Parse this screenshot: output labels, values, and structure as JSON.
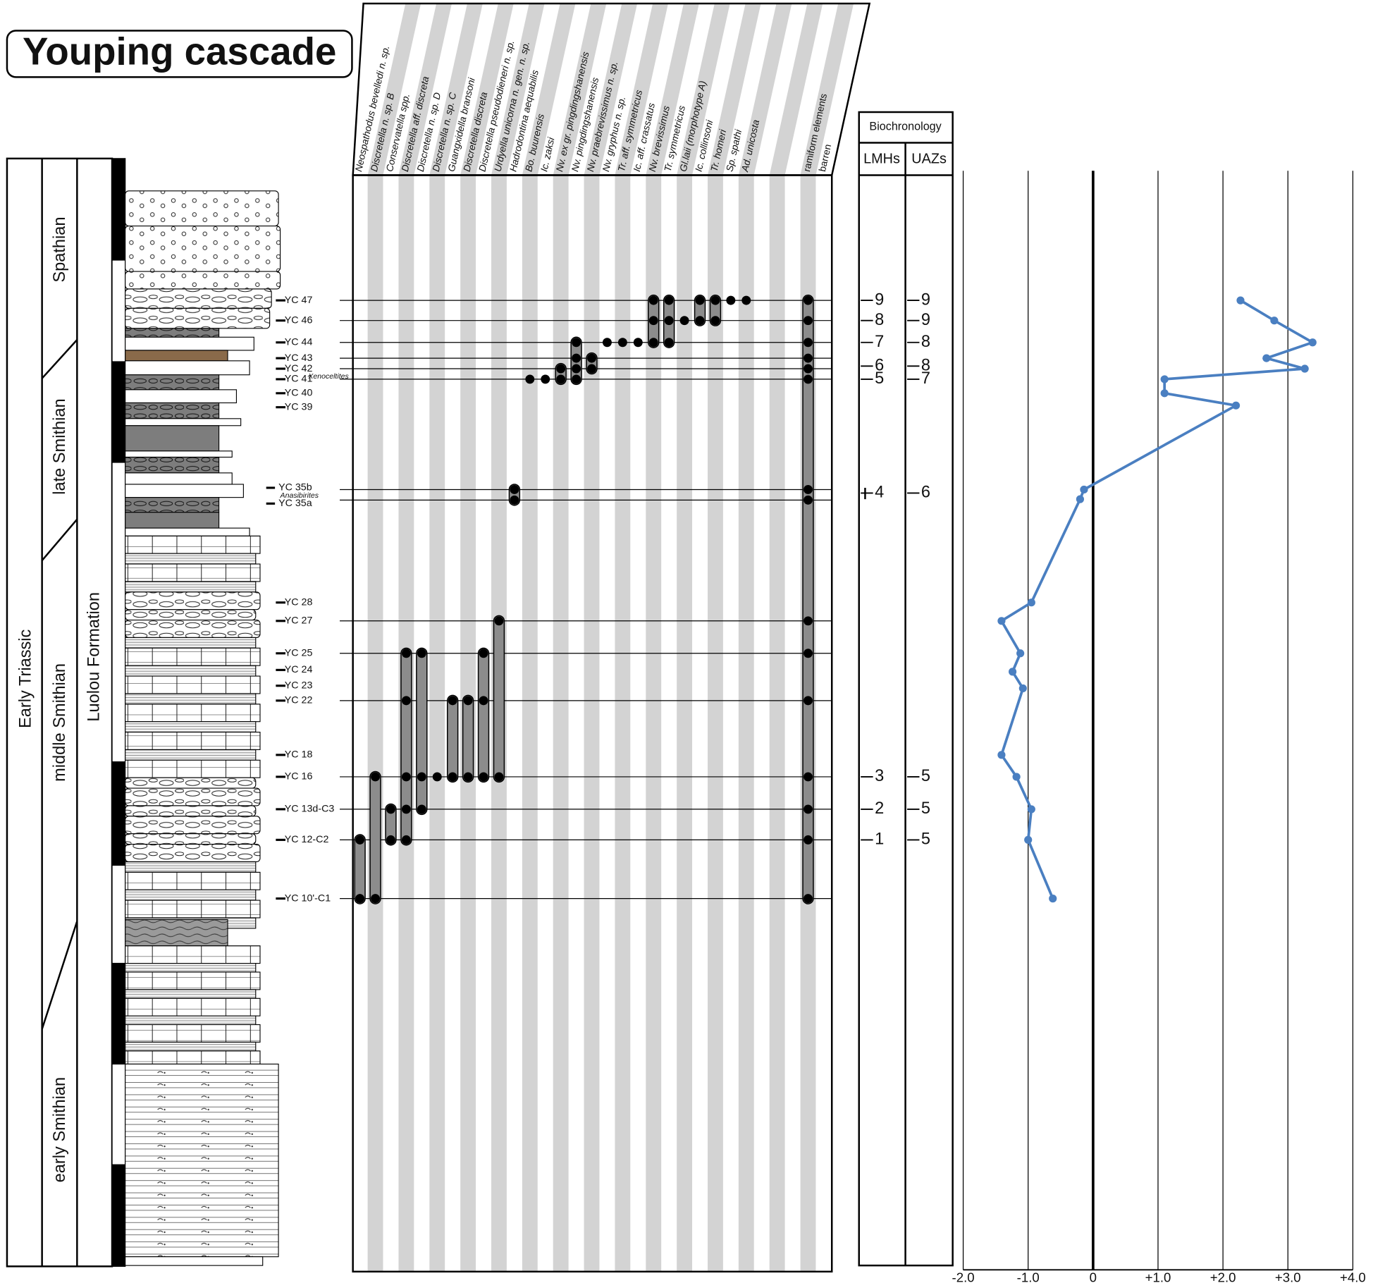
{
  "title": "Youping cascade",
  "column": {
    "system": "Early Triassic",
    "formation": "Luolou Formation",
    "stages": [
      "Spathian",
      "late Smithian",
      "middle Smithian",
      "early Smithian"
    ]
  },
  "samples": [
    "YC 47",
    "YC 46",
    "YC 44",
    "YC 43",
    "YC 42",
    "YC 41",
    "YC 40",
    "YC 39",
    "YC 35b",
    "YC 35a",
    "YC 28",
    "YC 27",
    "YC 25",
    "YC 24",
    "YC 23",
    "YC 22",
    "YC 18",
    "YC 16",
    "YC 13d-C3",
    "YC 12-C2",
    "YC 10'-C1"
  ],
  "ammonoids": [
    "Xenoceltites",
    "Anasibirites"
  ],
  "taxa": [
    "Neospathodus bevelledi n. sp.",
    "Discretella n. sp. B",
    "Conservatella spp.",
    "Discretella aff. discreta",
    "Discretella n. sp. D",
    "Discretella n. sp. C",
    "Guangxidella bransoni",
    "Discretella discreta",
    "Discretella pseudodieneri n. sp.",
    "Urdyella unicorna n. gen. n. sp.",
    "Hadrodontina aequabilis",
    "Bo. buurensis",
    "Ic. zaksi",
    "Nv. ex gr. pingdingshanensis",
    "Nv. pingdingshanensis",
    "Nv. praebrevissimus n. sp.",
    "Nv. gryphus n. sp.",
    "Tr. aff. symmetricus",
    "Ic. aff. crassatus",
    "Nv. brevissimus",
    "Tr. symmetricus",
    "Gl.laii (morphotype A)",
    "Ic. collinsoni",
    "Tr. homeri",
    "Sp. spathi",
    "Ad. unicosta",
    "ramiform elements",
    "barren"
  ],
  "occurrences": [
    [
      0,
      0,
      0,
      0,
      0,
      0,
      0,
      0,
      0,
      0,
      0,
      0,
      0,
      0,
      0,
      0,
      0,
      0,
      0,
      1,
      1,
      0,
      1,
      1,
      1,
      1,
      1,
      0
    ],
    [
      0,
      0,
      0,
      0,
      0,
      0,
      0,
      0,
      0,
      0,
      0,
      0,
      0,
      0,
      0,
      0,
      0,
      0,
      0,
      1,
      1,
      1,
      1,
      1,
      0,
      0,
      1,
      0
    ],
    [
      0,
      0,
      0,
      0,
      0,
      0,
      0,
      0,
      0,
      0,
      0,
      0,
      0,
      0,
      1,
      0,
      1,
      1,
      1,
      1,
      1,
      0,
      0,
      0,
      0,
      0,
      1,
      0
    ],
    [
      0,
      0,
      0,
      0,
      0,
      0,
      0,
      0,
      0,
      0,
      0,
      0,
      0,
      0,
      1,
      1,
      0,
      0,
      0,
      0,
      0,
      0,
      0,
      0,
      0,
      0,
      1,
      0
    ],
    [
      0,
      0,
      0,
      0,
      0,
      0,
      0,
      0,
      0,
      0,
      0,
      0,
      0,
      1,
      1,
      1,
      0,
      0,
      0,
      0,
      0,
      0,
      0,
      0,
      0,
      0,
      1,
      0
    ],
    [
      0,
      0,
      0,
      0,
      0,
      0,
      0,
      0,
      0,
      0,
      0,
      1,
      1,
      1,
      1,
      0,
      0,
      0,
      0,
      0,
      0,
      0,
      0,
      0,
      0,
      0,
      1,
      0
    ],
    [
      0,
      0,
      0,
      0,
      0,
      0,
      0,
      0,
      0,
      0,
      0,
      0,
      0,
      0,
      0,
      0,
      0,
      0,
      0,
      0,
      0,
      0,
      0,
      0,
      0,
      0,
      0,
      0
    ],
    [
      0,
      0,
      0,
      0,
      0,
      0,
      0,
      0,
      0,
      0,
      0,
      0,
      0,
      0,
      0,
      0,
      0,
      0,
      0,
      0,
      0,
      0,
      0,
      0,
      0,
      0,
      0,
      0
    ],
    [
      0,
      0,
      0,
      0,
      0,
      0,
      0,
      0,
      0,
      0,
      1,
      0,
      0,
      0,
      0,
      0,
      0,
      0,
      0,
      0,
      0,
      0,
      0,
      0,
      0,
      0,
      1,
      0
    ],
    [
      0,
      0,
      0,
      0,
      0,
      0,
      0,
      0,
      0,
      0,
      1,
      0,
      0,
      0,
      0,
      0,
      0,
      0,
      0,
      0,
      0,
      0,
      0,
      0,
      0,
      0,
      1,
      0
    ],
    [
      0,
      0,
      0,
      0,
      0,
      0,
      0,
      0,
      0,
      0,
      0,
      0,
      0,
      0,
      0,
      0,
      0,
      0,
      0,
      0,
      0,
      0,
      0,
      0,
      0,
      0,
      0,
      0
    ],
    [
      0,
      0,
      0,
      0,
      0,
      0,
      0,
      0,
      0,
      1,
      0,
      0,
      0,
      0,
      0,
      0,
      0,
      0,
      0,
      0,
      0,
      0,
      0,
      0,
      0,
      0,
      1,
      0
    ],
    [
      0,
      0,
      0,
      1,
      1,
      0,
      0,
      0,
      1,
      0,
      0,
      0,
      0,
      0,
      0,
      0,
      0,
      0,
      0,
      0,
      0,
      0,
      0,
      0,
      0,
      0,
      1,
      0
    ],
    [
      0,
      0,
      0,
      0,
      0,
      0,
      0,
      0,
      0,
      0,
      0,
      0,
      0,
      0,
      0,
      0,
      0,
      0,
      0,
      0,
      0,
      0,
      0,
      0,
      0,
      0,
      0,
      0
    ],
    [
      0,
      0,
      0,
      0,
      0,
      0,
      0,
      0,
      0,
      0,
      0,
      0,
      0,
      0,
      0,
      0,
      0,
      0,
      0,
      0,
      0,
      0,
      0,
      0,
      0,
      0,
      0,
      0
    ],
    [
      0,
      0,
      0,
      1,
      0,
      0,
      1,
      1,
      1,
      0,
      0,
      0,
      0,
      0,
      0,
      0,
      0,
      0,
      0,
      0,
      0,
      0,
      0,
      0,
      0,
      0,
      1,
      0
    ],
    [
      0,
      0,
      0,
      0,
      0,
      0,
      0,
      0,
      0,
      0,
      0,
      0,
      0,
      0,
      0,
      0,
      0,
      0,
      0,
      0,
      0,
      0,
      0,
      0,
      0,
      0,
      0,
      0
    ],
    [
      0,
      1,
      0,
      1,
      1,
      1,
      1,
      1,
      1,
      1,
      0,
      0,
      0,
      0,
      0,
      0,
      0,
      0,
      0,
      0,
      0,
      0,
      0,
      0,
      0,
      0,
      1,
      0
    ],
    [
      0,
      0,
      1,
      1,
      1,
      0,
      0,
      0,
      0,
      0,
      0,
      0,
      0,
      0,
      0,
      0,
      0,
      0,
      0,
      0,
      0,
      0,
      0,
      0,
      0,
      0,
      1,
      0
    ],
    [
      1,
      0,
      1,
      1,
      0,
      0,
      0,
      0,
      0,
      0,
      0,
      0,
      0,
      0,
      0,
      0,
      0,
      0,
      0,
      0,
      0,
      0,
      0,
      0,
      0,
      0,
      1,
      0
    ],
    [
      1,
      1,
      0,
      0,
      0,
      0,
      0,
      0,
      0,
      0,
      0,
      0,
      0,
      0,
      0,
      0,
      0,
      0,
      0,
      0,
      0,
      0,
      0,
      0,
      0,
      0,
      1,
      0
    ]
  ],
  "biochronology": {
    "title": "Biochronology",
    "headers": [
      "LMHs",
      "UAZs"
    ],
    "rows": [
      {
        "lmh": 9,
        "uaz": 9
      },
      {
        "lmh": 8,
        "uaz": 9
      },
      {
        "lmh": 7,
        "uaz": 8
      },
      {
        "lmh": 6,
        "uaz": 8
      },
      {
        "lmh": 5,
        "uaz": 7
      },
      {
        "lmh": 4,
        "uaz": 6
      },
      {
        "lmh": 3,
        "uaz": 5
      },
      {
        "lmh": 2,
        "uaz": 5
      },
      {
        "lmh": 1,
        "uaz": 5
      }
    ]
  },
  "chart_data": {
    "type": "line",
    "values": [
      2.27,
      2.79,
      3.38,
      2.67,
      3.26,
      1.1,
      1.1,
      2.2,
      -0.14,
      -0.2,
      -0.95,
      -1.41,
      -1.12,
      -1.24,
      -1.08,
      -1.41,
      -1.18,
      -0.95,
      -1.0,
      -0.62
    ],
    "color": "#4a7fc1",
    "xlim": [
      -2,
      4
    ],
    "xticks": [
      {
        "value": -2,
        "label": "-2.0"
      },
      {
        "value": -1,
        "label": "-1.0"
      },
      0,
      {
        "value": 1,
        "label": "+1.0"
      },
      {
        "value": 2,
        "label": "+2.0"
      },
      {
        "value": 3,
        "label": "+3.0"
      },
      {
        "value": 4,
        "label": "+4.0"
      }
    ],
    "grid": true
  }
}
